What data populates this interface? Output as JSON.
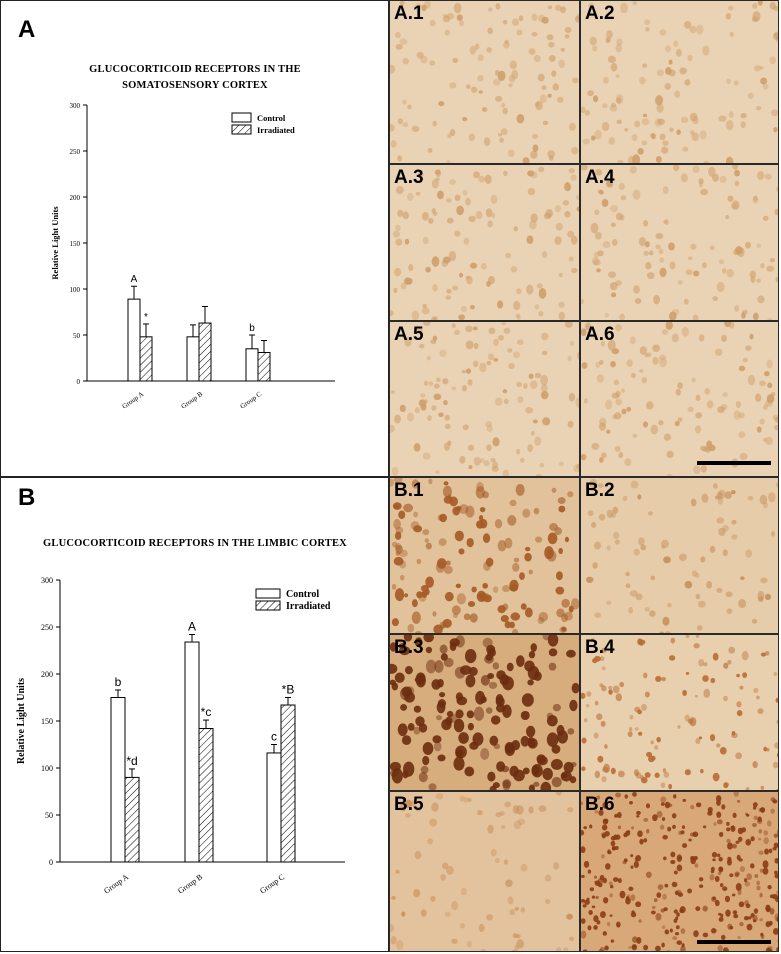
{
  "panels": {
    "A": {
      "letter": "A",
      "chart": {
        "title_line1": "GLUCOCORTICOID RECEPTORS IN THE",
        "title_line2": "SOMATOSENSORY CORTEX"
      }
    },
    "B": {
      "letter": "B",
      "chart": {
        "title_line1": "GLUCOCORTICOID RECEPTORS IN THE LIMBIC CORTEX"
      }
    }
  },
  "micrographs": {
    "A": [
      "A.1",
      "A.2",
      "A.3",
      "A.4",
      "A.5",
      "A.6"
    ],
    "B": [
      "B.1",
      "B.2",
      "B.3",
      "B.4",
      "B.5",
      "B.6"
    ]
  },
  "colors": {
    "stain_light": "#e8d2b0",
    "stain_mid": "#cf9b63",
    "stain_dark": "#6b2e0e"
  },
  "chart_data": [
    {
      "type": "bar",
      "title": "GLUCOCORTICOID RECEPTORS IN THE SOMATOSENSORY CORTEX",
      "xlabel": "",
      "ylabel": "Relative Light Units",
      "ylim": [
        0,
        300
      ],
      "yticks": [
        0,
        50,
        100,
        150,
        200,
        250,
        300
      ],
      "categories": [
        "Group A",
        "Group B",
        "Group C"
      ],
      "series": [
        {
          "name": "Control",
          "values": [
            89,
            48,
            35
          ],
          "errors": [
            14,
            13,
            15
          ],
          "labels": [
            "A",
            "",
            "b"
          ]
        },
        {
          "name": "Irradiated",
          "values": [
            48,
            63,
            31
          ],
          "errors": [
            14,
            18,
            13
          ],
          "labels": [
            "*",
            "",
            ""
          ]
        }
      ],
      "legend": "top-right",
      "grid": false
    },
    {
      "type": "bar",
      "title": "GLUCOCORTICOID RECEPTORS IN THE LIMBIC CORTEX",
      "xlabel": "",
      "ylabel": "Relative Light Units",
      "ylim": [
        0,
        300
      ],
      "yticks": [
        0,
        50,
        100,
        150,
        200,
        250,
        300
      ],
      "categories": [
        "Group A",
        "Group B",
        "Group C"
      ],
      "series": [
        {
          "name": "Control",
          "values": [
            175,
            234,
            116
          ],
          "errors": [
            8,
            8,
            9
          ],
          "labels": [
            "b",
            "A",
            "c"
          ]
        },
        {
          "name": "Irradiated",
          "values": [
            90,
            142,
            167
          ],
          "errors": [
            9,
            9,
            8
          ],
          "labels": [
            "*d",
            "*c",
            "*B"
          ]
        }
      ],
      "legend": "top-right",
      "grid": false
    }
  ]
}
